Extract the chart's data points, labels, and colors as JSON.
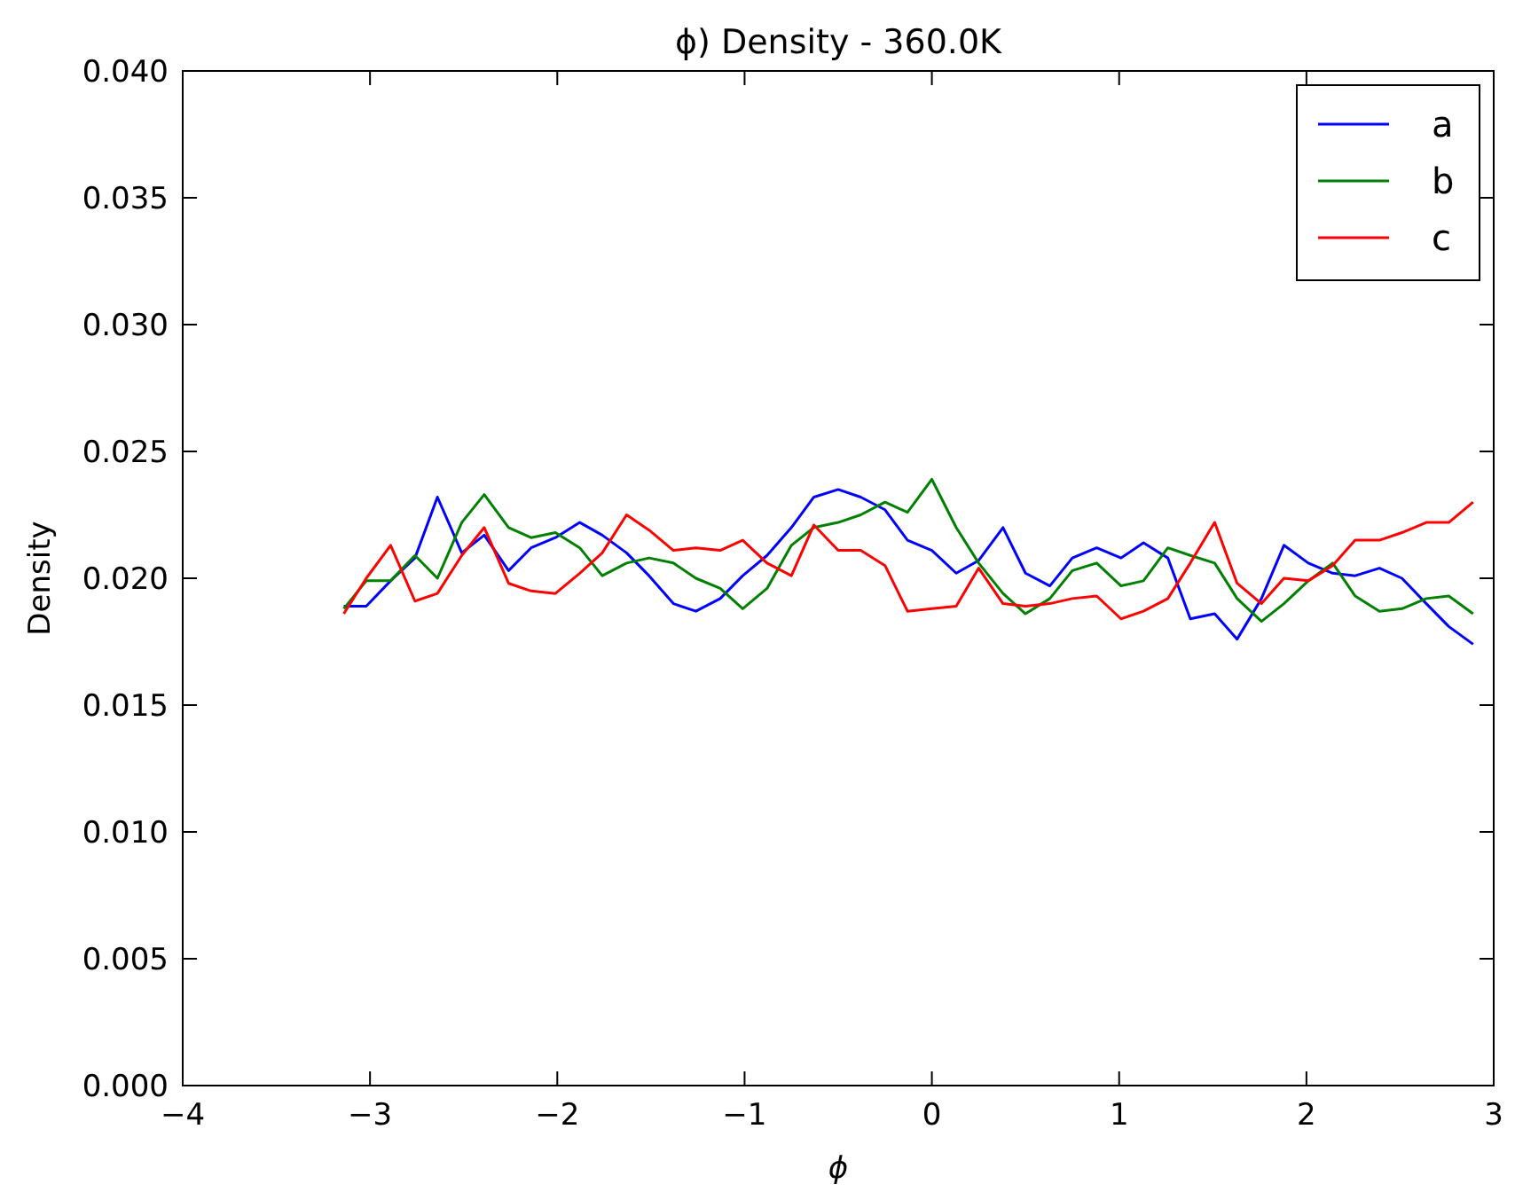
{
  "chart_data": {
    "type": "line",
    "title": "ϕ) Density - 360.0K",
    "xlabel": "ϕ",
    "ylabel": "Density",
    "x": [
      -3.14,
      -3.02,
      -2.89,
      -2.76,
      -2.64,
      -2.51,
      -2.39,
      -2.26,
      -2.14,
      -2.01,
      -1.88,
      -1.76,
      -1.63,
      -1.51,
      -1.38,
      -1.26,
      -1.13,
      -1.01,
      -0.88,
      -0.75,
      -0.63,
      -0.5,
      -0.38,
      -0.25,
      -0.13,
      0.0,
      0.13,
      0.25,
      0.38,
      0.5,
      0.63,
      0.75,
      0.88,
      1.01,
      1.13,
      1.26,
      1.38,
      1.51,
      1.63,
      1.76,
      1.88,
      2.01,
      2.14,
      2.26,
      2.39,
      2.51,
      2.64,
      2.76,
      2.89
    ],
    "series": [
      {
        "name": "a",
        "color": "#0000ff",
        "values": [
          0.0189,
          0.0189,
          0.0199,
          0.0208,
          0.0232,
          0.021,
          0.0217,
          0.0203,
          0.0212,
          0.0216,
          0.0222,
          0.0217,
          0.021,
          0.0201,
          0.019,
          0.0187,
          0.0192,
          0.0201,
          0.0209,
          0.022,
          0.0232,
          0.0235,
          0.0232,
          0.0227,
          0.0215,
          0.0211,
          0.0202,
          0.0207,
          0.022,
          0.0202,
          0.0197,
          0.0208,
          0.0212,
          0.0208,
          0.0214,
          0.0208,
          0.0184,
          0.0186,
          0.0176,
          0.0192,
          0.0213,
          0.0206,
          0.0202,
          0.0201,
          0.0204,
          0.02,
          0.019,
          0.0181,
          0.0174
        ]
      },
      {
        "name": "b",
        "color": "#008000",
        "values": [
          0.0188,
          0.0199,
          0.0199,
          0.0209,
          0.02,
          0.0222,
          0.0233,
          0.022,
          0.0216,
          0.0218,
          0.0212,
          0.0201,
          0.0206,
          0.0208,
          0.0206,
          0.02,
          0.0196,
          0.0188,
          0.0196,
          0.0213,
          0.022,
          0.0222,
          0.0225,
          0.023,
          0.0226,
          0.0239,
          0.022,
          0.0206,
          0.0194,
          0.0186,
          0.0192,
          0.0203,
          0.0206,
          0.0197,
          0.0199,
          0.0212,
          0.0209,
          0.0206,
          0.0192,
          0.0183,
          0.019,
          0.0199,
          0.0206,
          0.0193,
          0.0187,
          0.0188,
          0.0192,
          0.0193,
          0.0186
        ]
      },
      {
        "name": "c",
        "color": "#ff0000",
        "values": [
          0.0186,
          0.02,
          0.0213,
          0.0191,
          0.0194,
          0.0209,
          0.022,
          0.0198,
          0.0195,
          0.0194,
          0.0202,
          0.021,
          0.0225,
          0.0219,
          0.0211,
          0.0212,
          0.0211,
          0.0215,
          0.0206,
          0.0201,
          0.0221,
          0.0211,
          0.0211,
          0.0205,
          0.0187,
          0.0188,
          0.0189,
          0.0204,
          0.019,
          0.0189,
          0.019,
          0.0192,
          0.0193,
          0.0184,
          0.0187,
          0.0192,
          0.0206,
          0.0222,
          0.0198,
          0.019,
          0.02,
          0.0199,
          0.0205,
          0.0215,
          0.0215,
          0.0218,
          0.0222,
          0.0222,
          0.023
        ]
      }
    ],
    "xlim": [
      -4,
      3
    ],
    "xticks": [
      {
        "value": -4,
        "label": "−4"
      },
      {
        "value": -3,
        "label": "−3"
      },
      {
        "value": -2,
        "label": "−2"
      },
      {
        "value": -1,
        "label": "−1"
      },
      0,
      1,
      2,
      3
    ],
    "ylim": [
      0,
      0.04
    ],
    "yticks": [
      {
        "value": 0,
        "label": "0.000"
      },
      0.005,
      {
        "value": 0.01,
        "label": "0.010"
      },
      0.015,
      {
        "value": 0.02,
        "label": "0.020"
      },
      0.025,
      {
        "value": 0.03,
        "label": "0.030"
      },
      0.035,
      {
        "value": 0.04,
        "label": "0.040"
      }
    ],
    "legend": "top right",
    "grid": false,
    "marker": "none",
    "line_style": "solid"
  }
}
